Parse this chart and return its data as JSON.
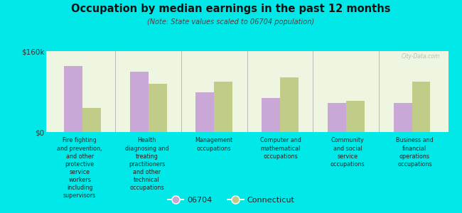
{
  "title": "Occupation by median earnings in the past 12 months",
  "subtitle": "(Note: State values scaled to 06704 population)",
  "categories": [
    "Fire fighting\nand prevention,\nand other\nprotective\nservice\nworkers\nincluding\nsupervisors",
    "Health\ndiagnosing and\ntreating\npractitioners\nand other\ntechnical\noccupations",
    "Management\noccupations",
    "Computer and\nmathematical\noccupations",
    "Community\nand social\nservice\noccupations",
    "Business and\nfinancial\noperations\noccupations"
  ],
  "values_06704": [
    130000,
    120000,
    78000,
    68000,
    58000,
    58000
  ],
  "values_ct": [
    48000,
    95000,
    100000,
    108000,
    62000,
    100000
  ],
  "ylim": [
    0,
    160000
  ],
  "yticks": [
    0,
    160000
  ],
  "yticklabels": [
    "$0",
    "$160k"
  ],
  "color_06704": "#c9a8d8",
  "color_ct": "#c0cc88",
  "background_color": "#00e8e8",
  "plot_bg": "#eef6e2",
  "legend_label_06704": "06704",
  "legend_label_ct": "Connecticut",
  "bar_width": 0.28,
  "watermark": "City-Data.com"
}
